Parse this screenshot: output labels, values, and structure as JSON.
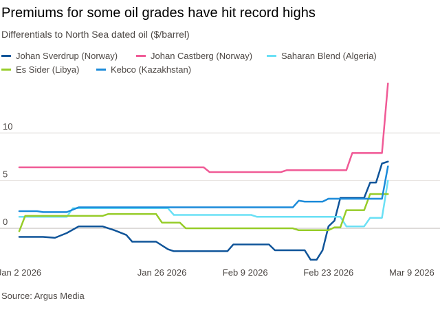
{
  "chart_data": {
    "type": "line",
    "title": "Premiums for some oil grades have hit record highs",
    "subtitle": "Differentials to North Sea dated oil ($/barrel)",
    "source": "Source: Argus Media",
    "xlabel": "",
    "ylabel": "",
    "ylim": [
      -5,
      16
    ],
    "yticks": [
      0,
      5,
      10
    ],
    "ytick_labels": [
      "0",
      "5",
      "10"
    ],
    "xticks": [
      "Jan 2 2026",
      "Jan 26 2026",
      "Feb 9 2026",
      "Feb 23 2026",
      "Mar 9 2026"
    ],
    "xtick_days": [
      0,
      24,
      38,
      52,
      66
    ],
    "grid": "horizontal",
    "legend": "top",
    "series": [
      {
        "name": "Johan Sverdrup (Norway)",
        "color": "#0f5499",
        "points": [
          [
            0,
            -0.9
          ],
          [
            4,
            -0.9
          ],
          [
            6,
            -1.0
          ],
          [
            8,
            -0.5
          ],
          [
            10,
            0.2
          ],
          [
            14,
            0.2
          ],
          [
            16,
            -0.2
          ],
          [
            18,
            -0.7
          ],
          [
            19,
            -1.4
          ],
          [
            23,
            -1.4
          ],
          [
            25,
            -2.2
          ],
          [
            26,
            -2.4
          ],
          [
            35,
            -2.4
          ],
          [
            36,
            -1.7
          ],
          [
            42,
            -1.7
          ],
          [
            43,
            -2.3
          ],
          [
            48,
            -2.3
          ],
          [
            49,
            -3.3
          ],
          [
            50,
            -3.3
          ],
          [
            51,
            -2.3
          ],
          [
            52,
            0.2
          ],
          [
            53,
            0.8
          ],
          [
            54,
            3.2
          ],
          [
            58,
            3.2
          ],
          [
            59,
            4.8
          ],
          [
            60,
            4.8
          ],
          [
            61,
            6.8
          ],
          [
            62,
            7.0
          ]
        ]
      },
      {
        "name": "Johan Castberg (Norway)",
        "color": "#f05a96",
        "points": [
          [
            0,
            6.4
          ],
          [
            31,
            6.4
          ],
          [
            32,
            5.9
          ],
          [
            44,
            5.9
          ],
          [
            45,
            6.1
          ],
          [
            55,
            6.1
          ],
          [
            56,
            7.9
          ],
          [
            61,
            7.9
          ],
          [
            62,
            15.2
          ]
        ]
      },
      {
        "name": "Saharan Blend (Algeria)",
        "color": "#6ae0f5",
        "points": [
          [
            0,
            1.2
          ],
          [
            8,
            1.2
          ],
          [
            9,
            2.1
          ],
          [
            25,
            2.1
          ],
          [
            26,
            1.4
          ],
          [
            39,
            1.4
          ],
          [
            40,
            1.2
          ],
          [
            54,
            1.2
          ],
          [
            55,
            0.2
          ],
          [
            58,
            0.2
          ],
          [
            59,
            1.1
          ],
          [
            61,
            1.1
          ],
          [
            62,
            5.0
          ]
        ]
      },
      {
        "name": "Es Sider (Libya)",
        "color": "#96cc28",
        "points": [
          [
            0,
            -0.3
          ],
          [
            1,
            1.3
          ],
          [
            14,
            1.3
          ],
          [
            15,
            1.5
          ],
          [
            23,
            1.5
          ],
          [
            24,
            0.6
          ],
          [
            27,
            0.6
          ],
          [
            28,
            0
          ],
          [
            46,
            0
          ],
          [
            47,
            -0.2
          ],
          [
            52,
            -0.2
          ],
          [
            53,
            0.1
          ],
          [
            54,
            0.1
          ],
          [
            55,
            1.9
          ],
          [
            58,
            1.9
          ],
          [
            59,
            3.6
          ],
          [
            62,
            3.6
          ]
        ]
      },
      {
        "name": "Kebco (Kazakhstan)",
        "color": "#1a8ad9",
        "points": [
          [
            0,
            1.8
          ],
          [
            3,
            1.8
          ],
          [
            4,
            1.7
          ],
          [
            8,
            1.7
          ],
          [
            10,
            2.2
          ],
          [
            46,
            2.2
          ],
          [
            47,
            2.9
          ],
          [
            48,
            2.8
          ],
          [
            51,
            2.8
          ],
          [
            52,
            3.1
          ],
          [
            61,
            3.1
          ],
          [
            62,
            6.5
          ]
        ]
      }
    ]
  }
}
